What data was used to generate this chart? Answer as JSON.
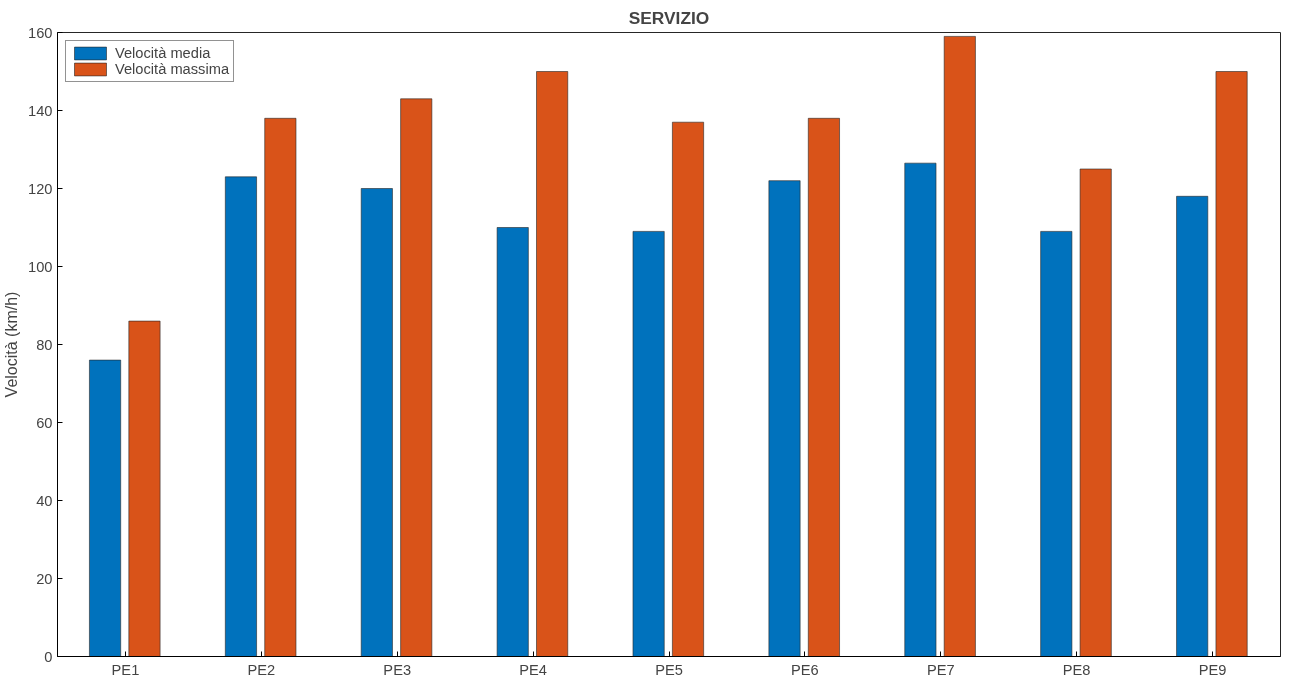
{
  "chart_data": {
    "type": "bar",
    "title": "SERVIZIO",
    "ylabel": "Velocità (km/h)",
    "categories": [
      "PE1",
      "PE2",
      "PE3",
      "PE4",
      "PE5",
      "PE6",
      "PE7",
      "PE8",
      "PE9"
    ],
    "series": [
      {
        "name": "Velocità media",
        "color": "#0072bd",
        "values": [
          76,
          123,
          120,
          110,
          109,
          122,
          126.5,
          109,
          118
        ]
      },
      {
        "name": "Velocità massima",
        "color": "#d95319",
        "values": [
          86,
          138,
          143,
          150,
          137,
          138,
          159,
          125,
          150
        ]
      }
    ],
    "ylim": [
      0,
      160
    ],
    "yticks": [
      0,
      20,
      40,
      60,
      80,
      100,
      120,
      140,
      160
    ],
    "grid": false,
    "legend": "top left"
  }
}
